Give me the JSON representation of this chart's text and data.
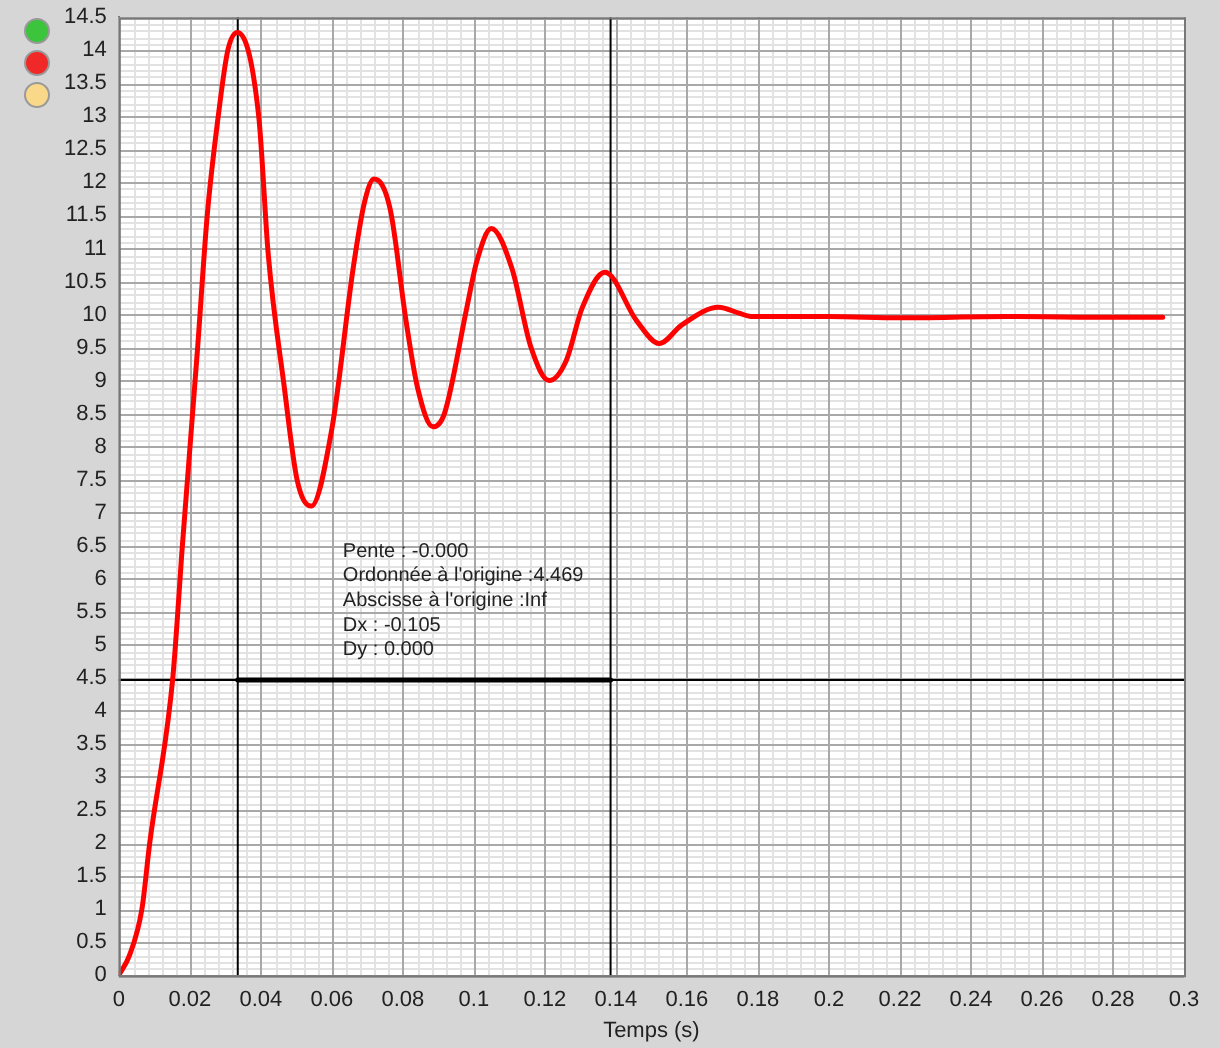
{
  "chart_data": {
    "type": "line",
    "xlabel": "Temps (s)",
    "xlim": [
      0,
      0.3
    ],
    "xticks": [
      0,
      0.02,
      0.04,
      0.06,
      0.08,
      0.1,
      0.12,
      0.14,
      0.16,
      0.18,
      0.2,
      0.22,
      0.24,
      0.26,
      0.28,
      0.3
    ],
    "ylim": [
      0,
      14.5
    ],
    "yticks": [
      0,
      0.5,
      1,
      1.5,
      2,
      2.5,
      3,
      3.5,
      4,
      4.5,
      5,
      5.5,
      6,
      6.5,
      7,
      7.5,
      8,
      8.5,
      9,
      9.5,
      10,
      10.5,
      11,
      11.5,
      12,
      12.5,
      13,
      13.5,
      14,
      14.5
    ],
    "grid": true,
    "legend": false,
    "marker": "none",
    "line_style": "solid",
    "series": [
      {
        "color": "#ff0000",
        "x": [
          0,
          0.003,
          0.0065,
          0.0087,
          0.0152,
          0.0179,
          0.0222,
          0.0249,
          0.028,
          0.0307,
          0.0334,
          0.0394,
          0.0421,
          0.0466,
          0.0502,
          0.0542,
          0.0601,
          0.066,
          0.0692,
          0.0719,
          0.0764,
          0.0809,
          0.0841,
          0.0885,
          0.0917,
          0.098,
          0.1008,
          0.1049,
          0.1107,
          0.1161,
          0.1212,
          0.126,
          0.1305,
          0.1369,
          0.1459,
          0.1522,
          0.1585,
          0.1689,
          0.1747,
          0.178,
          0.2,
          0.22,
          0.25,
          0.27,
          0.294
        ],
        "values": [
          0,
          0.3,
          1,
          2,
          4.5,
          6.5,
          9.5,
          11.5,
          13,
          14,
          14.27,
          13,
          10.9,
          8.9,
          7.5,
          7.1,
          8.3,
          10.7,
          11.7,
          12.05,
          11.6,
          9.9,
          8.9,
          8.3,
          8.5,
          10.1,
          10.8,
          11.3,
          10.7,
          9.5,
          9,
          9.3,
          10.1,
          10.64,
          9.9,
          9.56,
          9.84,
          10.11,
          10.02,
          9.97,
          9.97,
          9.95,
          9.97,
          9.96,
          9.96
        ]
      },
      {
        "type": "line",
        "color": "#000000",
        "x": [
          0.0335,
          0.1385
        ],
        "values": [
          4.469,
          4.469
        ]
      }
    ],
    "ref_lines": [
      {
        "axis": "x",
        "value": 0.0335,
        "color": "#000000"
      },
      {
        "axis": "x",
        "value": 0.1385,
        "color": "#000000"
      },
      {
        "axis": "y",
        "value": 4.469,
        "color": "#000000"
      }
    ],
    "annotations": [
      "Pente : -0.000",
      "Ordonnée à l'origine :4.469",
      "Abscisse à l'origine :Inf",
      "Dx : -0.105",
      "Dy : 0.000"
    ]
  }
}
